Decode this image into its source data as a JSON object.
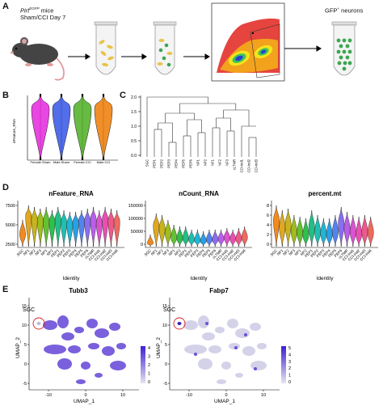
{
  "panels": {
    "a": {
      "letter": "A",
      "mouse_label_main": "Pirt",
      "mouse_label_sup": "EGFP",
      "mouse_label_suffix": " mice",
      "mouse_label_line2": "Sham/CCI Day 7",
      "gfp_label": "GFP",
      "gfp_sup": "+",
      "gfp_suffix": " neurons"
    },
    "b": {
      "letter": "B",
      "ylabel": "nFeature_RNA",
      "categories": [
        "Female.Sham",
        "Male.Sham",
        "Female.CCI",
        "Male.CCI"
      ],
      "colors": [
        "#e83ee0",
        "#4a67e8",
        "#5fb83a",
        "#f08a1e"
      ]
    },
    "c": {
      "letter": "C",
      "yticks": [
        "2.0",
        "1.5",
        "1.0",
        "0.5",
        "0.0"
      ],
      "leaves": [
        "SGC",
        "PEP1",
        "PEP2",
        "PEP3",
        "PEP4",
        "PEP5",
        "PEP6",
        "NP1",
        "NP2",
        "NF1",
        "NF2",
        "NF3",
        "cLTMR",
        "CCI-ind1",
        "CCI-ind2",
        "CCI-ind3"
      ]
    },
    "d": {
      "letter": "D",
      "plots": [
        {
          "title": "nFeature_RNA",
          "yticks": [
            "7500",
            "5000",
            "2500"
          ],
          "xlabel": "Identity"
        },
        {
          "title": "nCount_RNA",
          "yticks": [
            "150000",
            "100000",
            "50000",
            "0"
          ],
          "xlabel": "Identity"
        },
        {
          "title": "percent.mt",
          "yticks": [
            "8",
            "6",
            "4",
            "2",
            "0"
          ],
          "xlabel": "Identity"
        }
      ],
      "identities": [
        "SGC",
        "NF1",
        "NF2",
        "NF3",
        "NP1",
        "NP2",
        "PEP1",
        "PEP2",
        "PEP3",
        "PEP4",
        "PEP5",
        "PEP6",
        "cLTMR",
        "CCI-ind1",
        "CCI-ind2",
        "CCI-ind3",
        "CCI-ind4"
      ],
      "colors": [
        "#f08a1e",
        "#e0a820",
        "#c8b41c",
        "#9fbd1e",
        "#64c232",
        "#2fbf4e",
        "#21bf86",
        "#1fbfb2",
        "#1fb6d6",
        "#2a9fe6",
        "#5583ee",
        "#8a6ef0",
        "#b95ee8",
        "#db52d2",
        "#e850b0",
        "#ec5a8a",
        "#ee6a60"
      ]
    },
    "e": {
      "letter": "E",
      "plots": [
        {
          "title": "Tubb3",
          "legend": [
            "4",
            "3",
            "2",
            "1",
            "0"
          ]
        },
        {
          "title": "Fabp7",
          "legend": [
            "5",
            "4",
            "3",
            "2",
            "1",
            "0"
          ]
        }
      ],
      "sgc_label": "SGC",
      "xlabel": "UMAP_1",
      "ylabel": "UMAP_2",
      "xticks": [
        "-10",
        "0",
        "10"
      ],
      "yticks": [
        "15",
        "10",
        "5",
        "0",
        "-5"
      ]
    }
  }
}
